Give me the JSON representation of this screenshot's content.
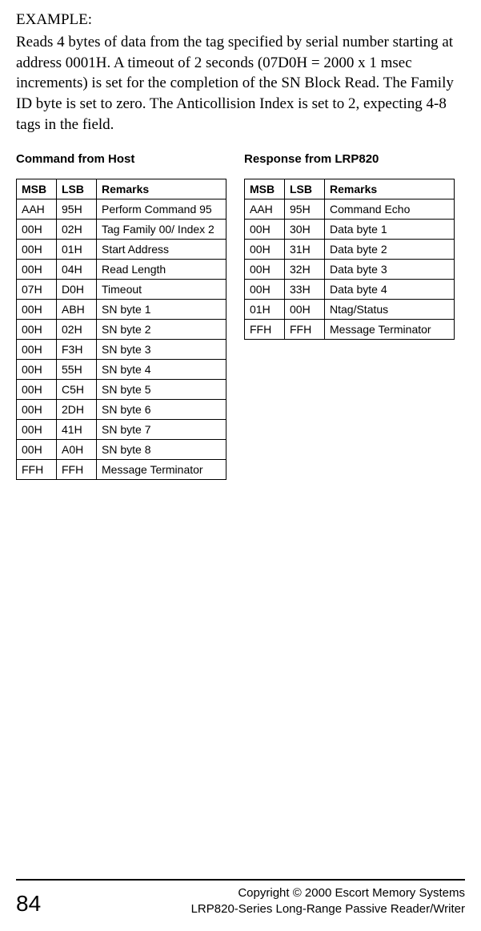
{
  "example": {
    "heading": "EXAMPLE:",
    "body": "Reads 4 bytes of data from the tag specified by serial number starting at address 0001H. A timeout of 2 seconds (07D0H = 2000 x 1 msec increments) is set for the completion of the SN Block Read. The Family ID byte is set to zero.  The Anticollision Index is set to 2, expecting 4-8 tags in the field."
  },
  "leftTable": {
    "title": "Command from Host",
    "headers": [
      "MSB",
      "LSB",
      "Remarks"
    ],
    "rows": [
      [
        "AAH",
        "95H",
        "Perform Command 95"
      ],
      [
        "00H",
        "02H",
        "Tag Family 00/  Index 2"
      ],
      [
        "00H",
        "01H",
        "Start Address"
      ],
      [
        "00H",
        "04H",
        "Read Length"
      ],
      [
        "07H",
        "D0H",
        "Timeout"
      ],
      [
        "00H",
        "ABH",
        "SN byte 1"
      ],
      [
        "00H",
        "02H",
        "SN byte 2"
      ],
      [
        "00H",
        "F3H",
        "SN byte 3"
      ],
      [
        "00H",
        "55H",
        "SN byte 4"
      ],
      [
        "00H",
        "C5H",
        "SN byte 5"
      ],
      [
        "00H",
        "2DH",
        "SN byte 6"
      ],
      [
        "00H",
        "41H",
        "SN byte 7"
      ],
      [
        "00H",
        "A0H",
        "SN byte 8"
      ],
      [
        "FFH",
        "FFH",
        "Message Terminator"
      ]
    ]
  },
  "rightTable": {
    "title": "Response from LRP820",
    "headers": [
      "MSB",
      "LSB",
      "Remarks"
    ],
    "rows": [
      [
        "AAH",
        "95H",
        "Command Echo"
      ],
      [
        "00H",
        "30H",
        "Data byte 1"
      ],
      [
        "00H",
        "31H",
        "Data byte 2"
      ],
      [
        "00H",
        "32H",
        "Data byte 3"
      ],
      [
        "00H",
        "33H",
        "Data byte 4"
      ],
      [
        "01H",
        "00H",
        "Ntag/Status"
      ],
      [
        "FFH",
        "FFH",
        "Message Terminator"
      ]
    ]
  },
  "footer": {
    "page": "84",
    "line1": "Copyright © 2000 Escort Memory Systems",
    "line2": "LRP820-Series Long-Range Passive Reader/Writer"
  }
}
